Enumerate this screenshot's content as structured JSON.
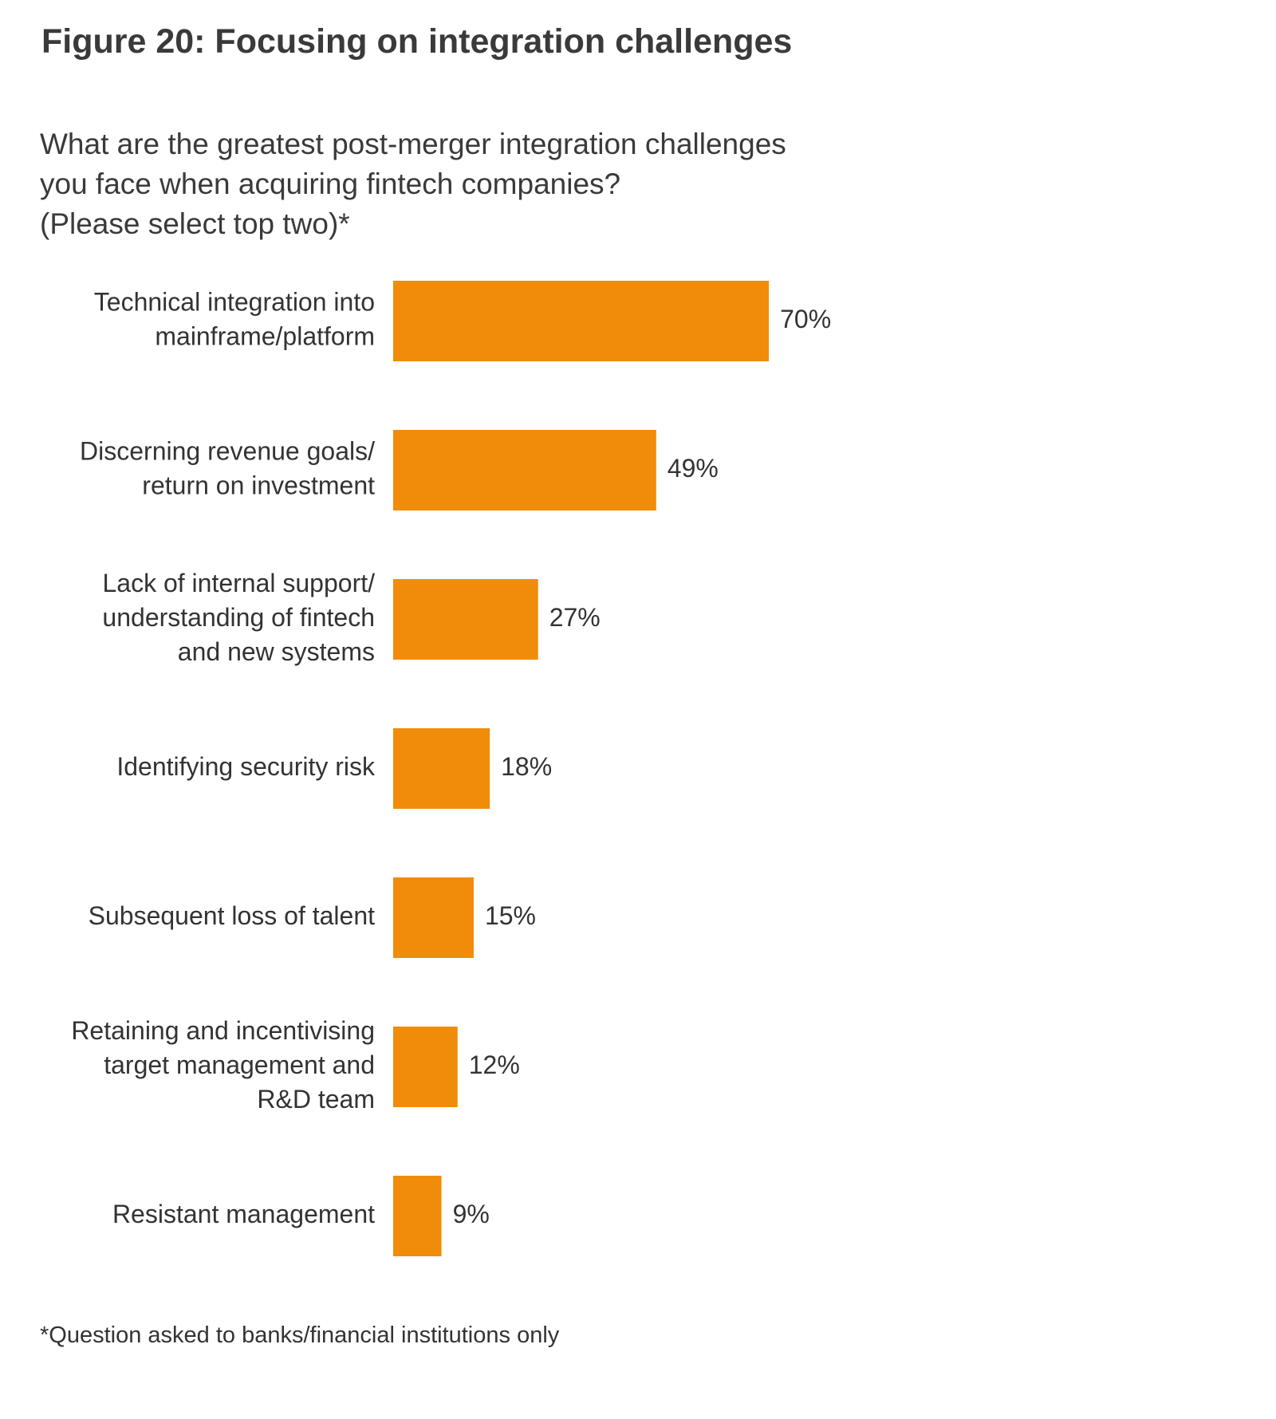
{
  "figure": {
    "title": "Figure 20: Focusing on integration challenges",
    "question_lines": [
      "What are the greatest post-merger integration challenges",
      "you face when acquiring fintech companies?",
      "(Please select top two)*"
    ],
    "footnote": "*Question asked to banks/financial institutions only"
  },
  "colors": {
    "bar": "#F08C0A",
    "text": "#333333"
  },
  "chart_data": {
    "type": "bar",
    "orientation": "horizontal",
    "value_unit": "%",
    "categories": [
      "Technical integration into mainframe/platform",
      "Discerning revenue goals/ return on investment",
      "Lack of internal support/ understanding of fintech and new systems",
      "Identifying security risk",
      "Subsequent loss of talent",
      "Retaining and incentivising target management and R&D team",
      "Resistant management"
    ],
    "category_label_lines": [
      [
        "Technical integration into",
        "mainframe/platform"
      ],
      [
        "Discerning revenue goals/",
        "return on investment"
      ],
      [
        "Lack of internal support/",
        "understanding of fintech",
        "and new systems"
      ],
      [
        "Identifying security risk"
      ],
      [
        "Subsequent loss of talent"
      ],
      [
        "Retaining and incentivising",
        "target management and",
        "R&D team"
      ],
      [
        "Resistant management"
      ]
    ],
    "values": [
      70,
      49,
      27,
      18,
      15,
      12,
      9
    ],
    "data_labels": [
      "70%",
      "49%",
      "27%",
      "18%",
      "15%",
      "12%",
      "9%"
    ],
    "xlim": [
      0,
      100
    ],
    "grid": false,
    "legend": "none"
  }
}
